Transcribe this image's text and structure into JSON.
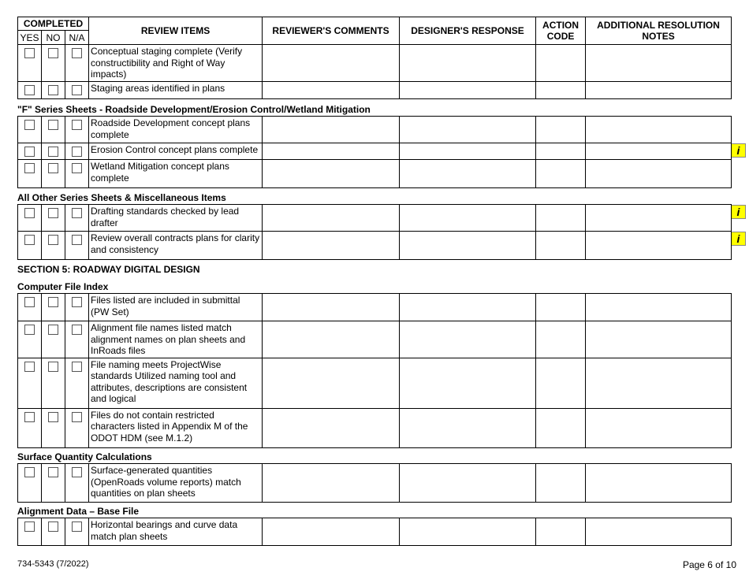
{
  "header": {
    "completed": "COMPLETED",
    "yes": "YES",
    "no": "NO",
    "na": "N/A",
    "review_items": "REVIEW ITEMS",
    "reviewers_comments": "REVIEWER'S COMMENTS",
    "designers_response": "DESIGNER'S RESPONSE",
    "action_code": "ACTION CODE",
    "notes": "ADDITIONAL RESOLUTION NOTES"
  },
  "group1": {
    "items": [
      "Conceptual staging complete (Verify constructibility and Right of Way impacts)",
      "Staging areas identified in plans"
    ]
  },
  "group2": {
    "heading": "\"F\" Series Sheets - Roadside Development/Erosion Control/Wetland Mitigation",
    "items": [
      "Roadside Development concept plans complete",
      "Erosion Control concept plans complete",
      "Wetland Mitigation concept plans complete"
    ]
  },
  "group3": {
    "heading": "All Other Series Sheets & Miscellaneous Items",
    "items": [
      "Drafting standards checked by lead drafter",
      "Review overall contracts plans for clarity and consistency"
    ]
  },
  "section5": {
    "heading": "SECTION 5: ROADWAY DIGITAL DESIGN"
  },
  "group4": {
    "heading": "Computer File Index",
    "items": [
      "Files listed are included in submittal (PW Set)",
      "Alignment file names listed match alignment names  on plan sheets and InRoads files",
      "File naming meets ProjectWise standards Utilized naming tool and attributes, descriptions are consistent and logical",
      "Files do not contain restricted characters listed in Appendix M of the ODOT HDM (see M.1.2)"
    ]
  },
  "group5": {
    "heading": "Surface Quantity Calculations",
    "items": [
      " Surface-generated quantities (OpenRoads volume reports) match quantities on plan sheets"
    ]
  },
  "group6": {
    "heading": "Alignment Data – Base File",
    "items": [
      "Horizontal bearings and curve data match plan sheets"
    ]
  },
  "info_icon": {
    "glyph": "i",
    "color": "#ffff00"
  },
  "footer": {
    "form_number": "734-5343 (7/2022)",
    "page": "Page 6 of 10"
  }
}
